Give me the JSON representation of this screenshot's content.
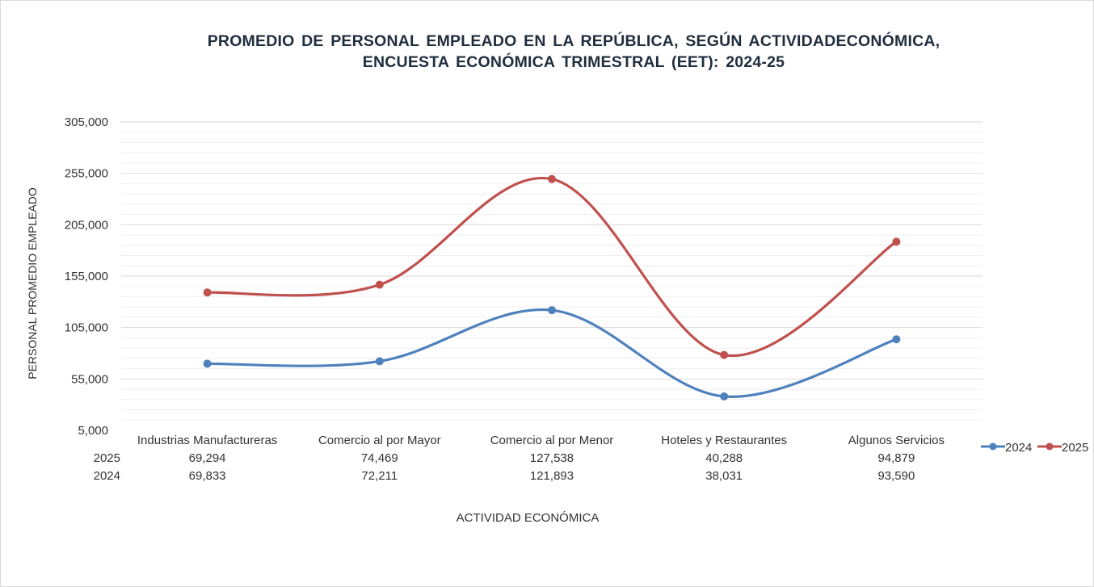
{
  "chart_data": {
    "type": "line",
    "stacked": true,
    "title_line1": "PROMEDIO DE PERSONAL EMPLEADO EN LA REPÚBLICA, SEGÚN ACTIVIDADECONÓMICA,",
    "title_line2": "ENCUESTA ECONÓMICA TRIMESTRAL (EET):  2024-25",
    "xlabel": "ACTIVIDAD ECONÓMICA",
    "ylabel": "PERSONAL PROMEDIO  EMPLEADO",
    "ylim": [
      5000,
      305000
    ],
    "yticks": [
      5000,
      55000,
      105000,
      155000,
      205000,
      255000,
      305000
    ],
    "ytick_labels": [
      "5,000",
      "55,000",
      "105,000",
      "155,000",
      "205,000",
      "255,000",
      "305,000"
    ],
    "minor_grid_step": 10000,
    "grid": true,
    "smooth": true,
    "categories": [
      "Industrias Manufactureras",
      "Comercio al por Mayor",
      "Comercio al por Menor",
      "Hoteles y Restaurantes",
      "Algunos Servicios"
    ],
    "series": [
      {
        "name": "2024",
        "color": "#4f81bd",
        "values": [
          69833,
          72211,
          121893,
          38031,
          93590
        ],
        "labels": [
          "69,833",
          "72,211",
          "121,893",
          "38,031",
          "93,590"
        ]
      },
      {
        "name": "2025",
        "color": "#c0504d",
        "values": [
          69294,
          74469,
          127538,
          40288,
          94879
        ],
        "labels": [
          "69,294",
          "74,469",
          "127,538",
          "40,288",
          "94,879"
        ]
      }
    ],
    "data_table_rows": [
      "2025",
      "2024"
    ],
    "legend": {
      "position": "right",
      "entries": [
        "2024",
        "2025"
      ]
    }
  }
}
